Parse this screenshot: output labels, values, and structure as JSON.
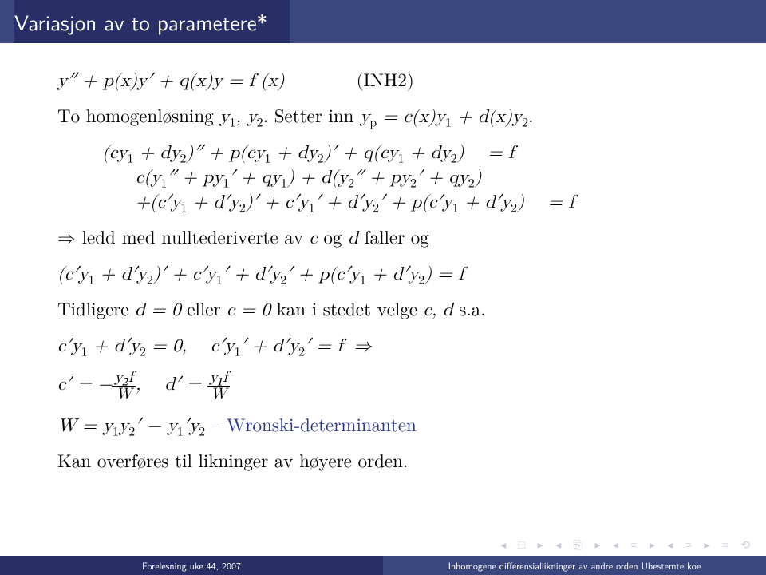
{
  "colors": {
    "titlebar_left_bg": "#272f66",
    "titlebar_right_bg": "#3a477f",
    "footer_left_bg": "#272f66",
    "footer_right_bg": "#3a477f",
    "blue_text": "#2a3b8f",
    "navsym_color": "#c6c9db"
  },
  "title": "Variasjon av to parametere*",
  "eq_top": "y″ + p(x)y′ + q(x)y = f (x)",
  "tag_inh": "(INH2)",
  "line_homogen": "To homogenløsning y₁, y₂. Setter inn yₚ = c(x)y₁ + d(x)y₂.",
  "eq_block1_l1": "(cy₁ + dy₂)″ + p(cy₁ + dy₂)′ + q(cy₁ + dy₂)",
  "eq_block1_r1": "= f",
  "eq_block1_l2": "c(y₁″ + py₁′ + qy₁) + d(y₂″ + py₂′ + qy₂)",
  "eq_block1_l3": "+(c′y₁ + d′y₂)′ + c′y₁′ + d′y₂′ + p(c′y₁ + d′y₂)",
  "eq_block1_r3": "= f",
  "line_ledd": "⇒ ledd med nulltederiverte av c og d faller og",
  "eq_mid": "(c′y₁ + d′y₂)′ + c′y₁′ + d′y₂′ + p(c′y₁ + d′y₂) = f",
  "line_tidl": "Tidligere d = 0 eller c = 0 kan i stedet velge c, d s.a.",
  "eq_cd": "c′y₁ + d′y₂ = 0,     c′y₁′ + d′y₂′ = f  ⇒",
  "eq_cprime_lhs": "c′ = −",
  "eq_cprime_num": "y₂f",
  "eq_cprime_den": "W",
  "eq_dprime_lhs": "d′ =",
  "eq_dprime_num": "y₁f",
  "eq_dprime_den": "W",
  "eq_comma": ",",
  "eq_W": "W = y₁y₂′ − y₁′y₂",
  "wronski_label": " – Wronski-determinanten",
  "line_overf": "Kan overføres til likninger av høyere orden.",
  "footer_left": "Forelesning uke 44, 2007",
  "footer_right": "Inhomogene differensiallikninger av andre orden Ubestemte koe",
  "navsyms": "◂ □ ▸  ◂ ⎘ ▸  ◂ ≡ ▸  ◂ ≡ ▸   ≡   ⟲"
}
